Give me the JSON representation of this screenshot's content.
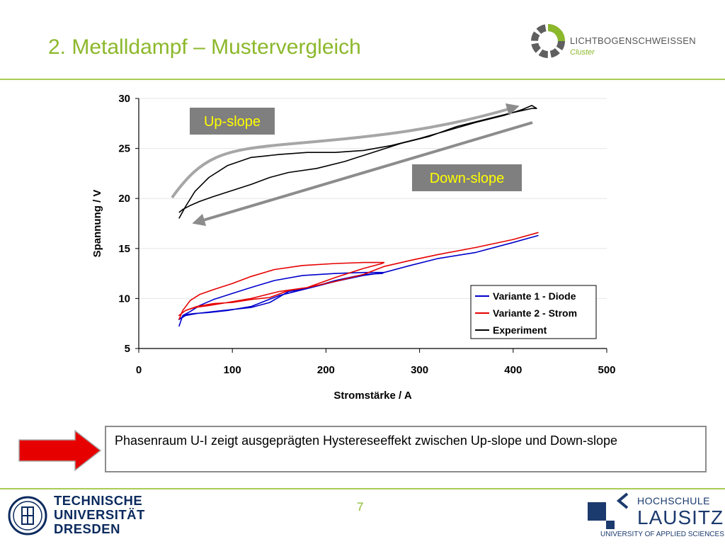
{
  "slide": {
    "title": "2. Metalldampf – Mustervergleich",
    "page_number": "7",
    "note": "Phasenraum U-I zeigt ausgeprägten Hystereseeffekt zwischen Up-slope und Down-slope",
    "accent_color": "#8cb82b"
  },
  "logos": {
    "cluster_name": "LICHTBOGENSCHWEISSEN",
    "cluster_sub": "Cluster",
    "tud_line1": "TECHNISCHE",
    "tud_line2": "UNIVERSITÄT",
    "tud_line3": "DRESDEN",
    "hsl_line1": "HOCHSCHULE",
    "hsl_line2": "LAUSITZ",
    "hsl_line3": "UNIVERSITY OF APPLIED SCIENCES"
  },
  "chart_data": {
    "type": "line",
    "title": "",
    "xlabel": "Stromstärke / A",
    "ylabel": "Spannung / V",
    "xlim": [
      0,
      500
    ],
    "ylim": [
      5,
      30
    ],
    "xticks": [
      0,
      100,
      200,
      300,
      400,
      500
    ],
    "yticks": [
      5,
      10,
      15,
      20,
      25,
      30
    ],
    "grid": "horizontal",
    "legend_position": "bottom-right",
    "annotations": [
      {
        "text": "Up-slope",
        "bg": "#7f7f7f",
        "color": "#ffff00"
      },
      {
        "text": "Down-slope",
        "bg": "#7f7f7f",
        "color": "#ffff00"
      }
    ],
    "series": [
      {
        "name": "Variante 1 - Diode",
        "color": "#0000cc",
        "x": [
          43,
          47,
          55,
          65,
          80,
          100,
          120,
          145,
          175,
          210,
          240,
          262,
          260,
          240,
          210,
          180,
          160,
          140,
          120,
          100,
          80,
          62,
          50,
          43,
          50,
          60,
          75,
          95,
          120,
          150,
          180,
          210,
          240,
          262,
          290,
          320,
          360,
          400,
          427
        ],
        "y": [
          7.2,
          8.3,
          8.7,
          9.3,
          9.9,
          10.5,
          11.1,
          11.8,
          12.3,
          12.5,
          12.6,
          12.6,
          12.5,
          12.4,
          11.8,
          11.0,
          10.7,
          9.6,
          9.1,
          8.9,
          8.7,
          8.5,
          8.3,
          7.9,
          8.4,
          8.5,
          8.6,
          8.8,
          9.2,
          10.3,
          11.0,
          11.7,
          12.3,
          12.6,
          13.3,
          14.0,
          14.6,
          15.6,
          16.3
        ]
      },
      {
        "name": "Variante 2 - Strom",
        "color": "#e60000",
        "x": [
          43,
          47,
          55,
          65,
          80,
          100,
          120,
          145,
          175,
          210,
          240,
          262,
          260,
          240,
          210,
          180,
          160,
          140,
          120,
          100,
          80,
          62,
          50,
          43,
          50,
          60,
          75,
          95,
          120,
          150,
          180,
          210,
          240,
          262,
          290,
          320,
          360,
          400,
          427
        ],
        "y": [
          7.9,
          8.8,
          9.8,
          10.4,
          10.9,
          11.5,
          12.2,
          12.9,
          13.3,
          13.5,
          13.6,
          13.6,
          13.5,
          13.0,
          12.1,
          11.1,
          10.8,
          10.1,
          9.9,
          9.6,
          9.5,
          9.2,
          8.8,
          8.3,
          8.8,
          9.1,
          9.3,
          9.6,
          10.0,
          10.7,
          11.1,
          11.7,
          12.4,
          13.2,
          13.8,
          14.4,
          15.1,
          15.9,
          16.6
        ]
      },
      {
        "name": "Experiment",
        "color": "#000000",
        "x": [
          43,
          50,
          60,
          75,
          95,
          120,
          150,
          180,
          210,
          240,
          270,
          300,
          330,
          360,
          390,
          410,
          420,
          425,
          420,
          400,
          370,
          340,
          310,
          280,
          250,
          220,
          190,
          160,
          140,
          120,
          100,
          80,
          65,
          55,
          47,
          43
        ],
        "y": [
          18.0,
          19.2,
          20.7,
          22.1,
          23.3,
          24.1,
          24.4,
          24.6,
          24.6,
          24.8,
          25.3,
          26.0,
          26.8,
          27.6,
          28.3,
          28.9,
          29.3,
          29.0,
          29.0,
          28.6,
          27.9,
          27.2,
          26.2,
          25.5,
          24.6,
          23.7,
          23.0,
          22.6,
          22.1,
          21.4,
          20.8,
          20.2,
          19.7,
          19.3,
          18.9,
          18.6
        ]
      }
    ]
  }
}
